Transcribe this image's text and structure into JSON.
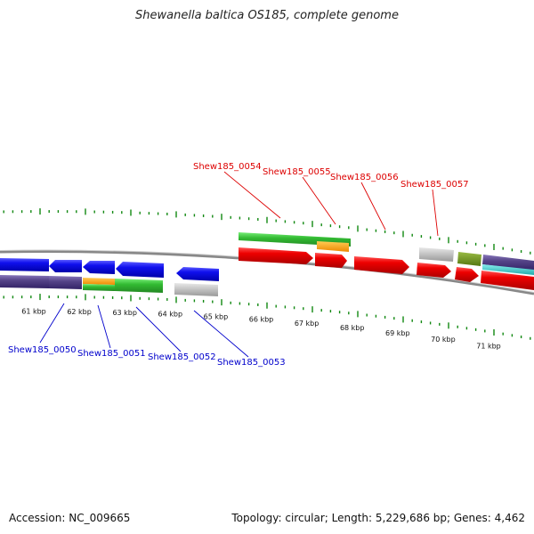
{
  "title": "Shewanella baltica OS185, complete genome",
  "footer": {
    "accession": "Accession: NC_009665",
    "summary": "Topology: circular; Length: 5,229,686 bp; Genes: 4,462"
  },
  "colors": {
    "backbone": "#808080",
    "tick": "#118811",
    "blue_gene": "#0a0adf",
    "purple_gene": "#554488",
    "red_gene": "#ee0000",
    "green_gene": "#33bb33",
    "orange_gene": "#ff9900",
    "gray_gene": "#bbbbbb",
    "olive_gene": "#669922",
    "cyan_gene": "#33cccc",
    "top_label": "#dd0000",
    "bottom_label": "#0000cc"
  },
  "axis": {
    "kbp_labels": [
      "61 kbp",
      "62 kbp",
      "63 kbp",
      "64 kbp",
      "65 kbp",
      "66 kbp",
      "67 kbp",
      "68 kbp",
      "69 kbp",
      "70 kbp",
      "71 kbp"
    ]
  },
  "top_loci": [
    "Shew185_0054",
    "Shew185_0055",
    "Shew185_0056",
    "Shew185_0057"
  ],
  "bottom_loci": [
    "Shew185_0050",
    "Shew185_0051",
    "Shew185_0052",
    "Shew185_0053"
  ]
}
